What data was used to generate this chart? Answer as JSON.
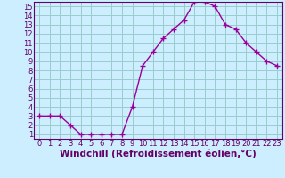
{
  "x": [
    0,
    1,
    2,
    3,
    4,
    5,
    6,
    7,
    8,
    9,
    10,
    11,
    12,
    13,
    14,
    15,
    16,
    17,
    18,
    19,
    20,
    21,
    22,
    23
  ],
  "y": [
    3,
    3,
    3,
    2,
    1,
    1,
    1,
    1,
    1,
    4,
    8.5,
    10,
    11.5,
    12.5,
    13.5,
    15.5,
    15.5,
    15,
    13,
    12.5,
    11,
    10,
    9,
    8.5
  ],
  "line_color": "#990099",
  "marker": "+",
  "bg_color": "#cceeff",
  "grid_color": "#99cccc",
  "xlabel": "Windchill (Refroidissement éolien,°C)",
  "xlim": [
    -0.5,
    23.5
  ],
  "ylim": [
    0.5,
    15.5
  ],
  "yticks": [
    1,
    2,
    3,
    4,
    5,
    6,
    7,
    8,
    9,
    10,
    11,
    12,
    13,
    14,
    15
  ],
  "xticks": [
    0,
    1,
    2,
    3,
    4,
    5,
    6,
    7,
    8,
    9,
    10,
    11,
    12,
    13,
    14,
    15,
    16,
    17,
    18,
    19,
    20,
    21,
    22,
    23
  ],
  "tick_label_size": 6,
  "xlabel_size": 7.5,
  "line_color2": "#660066",
  "tick_color": "#660066",
  "spine_color": "#660066"
}
